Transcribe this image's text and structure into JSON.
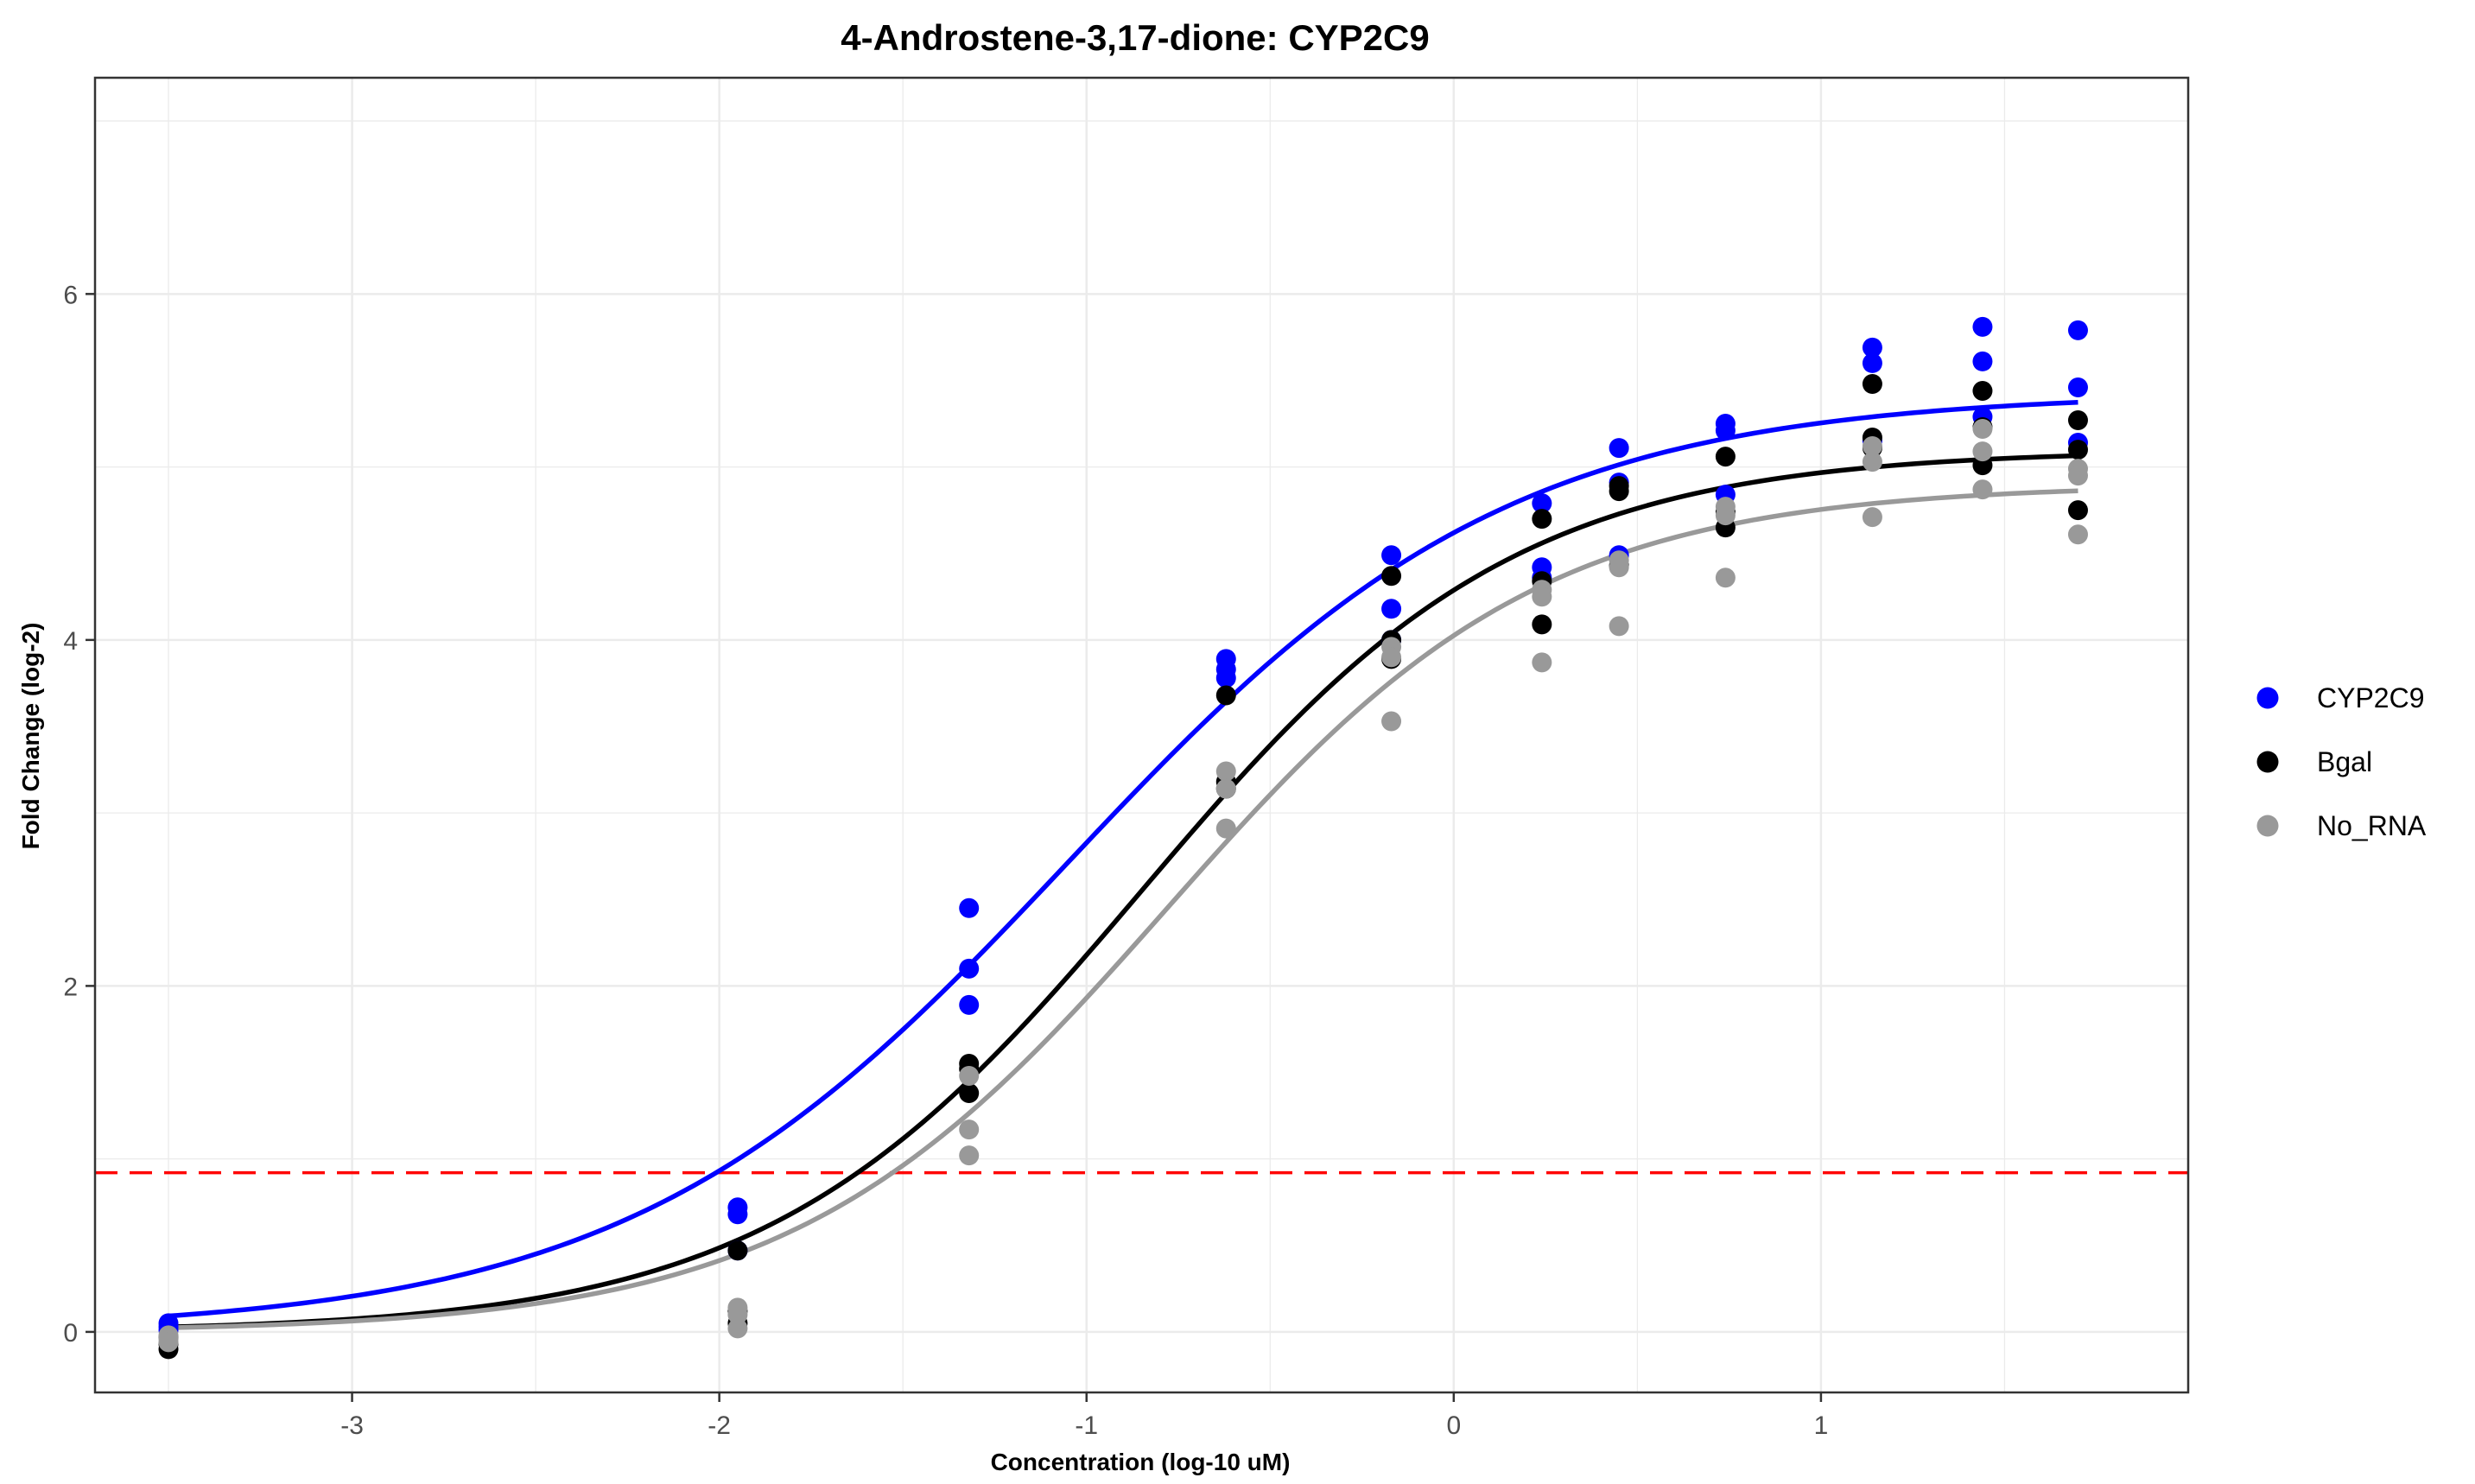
{
  "chart_data": {
    "type": "scatter",
    "title": "4-Androstene-3,17-dione: CYP2C9",
    "xlabel": "Concentration (log-10 uM)",
    "ylabel": "Fold Change (log-2)",
    "xlim": [
      -3.7,
      2.0
    ],
    "ylim": [
      -0.35,
      7.25
    ],
    "x_ticks": [
      -3,
      -2,
      -1,
      0,
      1
    ],
    "y_ticks": [
      0,
      2,
      4,
      6
    ],
    "grid": true,
    "legend_position": "right",
    "threshold": {
      "y": 0.92,
      "color": "#ff0000",
      "style": "dashed"
    },
    "series": [
      {
        "name": "CYP2C9",
        "color": "#0000ff",
        "points": [
          [
            -3.5,
            0.05
          ],
          [
            -3.5,
            0.03
          ],
          [
            -3.5,
            0.01
          ],
          [
            -1.95,
            0.72
          ],
          [
            -1.95,
            0.68
          ],
          [
            -1.95,
            0.47
          ],
          [
            -1.32,
            2.45
          ],
          [
            -1.32,
            2.1
          ],
          [
            -1.32,
            1.89
          ],
          [
            -0.62,
            3.89
          ],
          [
            -0.62,
            3.83
          ],
          [
            -0.62,
            3.78
          ],
          [
            -0.17,
            4.49
          ],
          [
            -0.17,
            4.18
          ],
          [
            -0.17,
            4.0
          ],
          [
            0.24,
            4.79
          ],
          [
            0.24,
            4.42
          ],
          [
            0.24,
            4.36
          ],
          [
            0.45,
            5.11
          ],
          [
            0.45,
            4.91
          ],
          [
            0.45,
            4.49
          ],
          [
            0.74,
            5.25
          ],
          [
            0.74,
            5.21
          ],
          [
            0.74,
            4.84
          ],
          [
            1.14,
            5.69
          ],
          [
            1.14,
            5.6
          ],
          [
            1.14,
            5.15
          ],
          [
            1.44,
            5.81
          ],
          [
            1.44,
            5.61
          ],
          [
            1.44,
            5.29
          ],
          [
            1.7,
            5.79
          ],
          [
            1.7,
            5.46
          ],
          [
            1.7,
            5.14
          ]
        ],
        "curve": {
          "bottom": 0.0,
          "top": 5.43,
          "ec50": -1.05,
          "hill": 0.72
        }
      },
      {
        "name": "Bgal",
        "color": "#000000",
        "points": [
          [
            -3.5,
            -0.03
          ],
          [
            -3.5,
            -0.07
          ],
          [
            -3.5,
            -0.1
          ],
          [
            -1.95,
            0.47
          ],
          [
            -1.95,
            0.12
          ],
          [
            -1.95,
            0.05
          ],
          [
            -1.32,
            1.55
          ],
          [
            -1.32,
            1.52
          ],
          [
            -1.32,
            1.38
          ],
          [
            -0.62,
            3.68
          ],
          [
            -0.62,
            3.18
          ],
          [
            -0.62,
            3.14
          ],
          [
            -0.17,
            4.37
          ],
          [
            -0.17,
            4.0
          ],
          [
            -0.17,
            3.89
          ],
          [
            0.24,
            4.7
          ],
          [
            0.24,
            4.34
          ],
          [
            0.24,
            4.09
          ],
          [
            0.45,
            4.89
          ],
          [
            0.45,
            4.86
          ],
          [
            0.45,
            4.43
          ],
          [
            0.74,
            5.06
          ],
          [
            0.74,
            4.74
          ],
          [
            0.74,
            4.65
          ],
          [
            1.14,
            5.48
          ],
          [
            1.14,
            5.17
          ],
          [
            1.14,
            5.11
          ],
          [
            1.44,
            5.44
          ],
          [
            1.44,
            5.23
          ],
          [
            1.44,
            5.01
          ],
          [
            1.7,
            5.27
          ],
          [
            1.7,
            5.1
          ],
          [
            1.7,
            4.75
          ]
        ],
        "curve": {
          "bottom": 0.0,
          "top": 5.1,
          "ec50": -0.85,
          "hill": 0.85
        }
      },
      {
        "name": "No_RNA",
        "color": "#999999",
        "points": [
          [
            -3.5,
            -0.02
          ],
          [
            -3.5,
            -0.04
          ],
          [
            -3.5,
            -0.06
          ],
          [
            -1.95,
            0.14
          ],
          [
            -1.95,
            0.1
          ],
          [
            -1.95,
            0.02
          ],
          [
            -1.32,
            1.48
          ],
          [
            -1.32,
            1.17
          ],
          [
            -1.32,
            1.02
          ],
          [
            -0.62,
            3.24
          ],
          [
            -0.62,
            3.14
          ],
          [
            -0.62,
            2.91
          ],
          [
            -0.17,
            3.96
          ],
          [
            -0.17,
            3.9
          ],
          [
            -0.17,
            3.53
          ],
          [
            0.24,
            4.29
          ],
          [
            0.24,
            4.25
          ],
          [
            0.24,
            3.87
          ],
          [
            0.45,
            4.46
          ],
          [
            0.45,
            4.42
          ],
          [
            0.45,
            4.08
          ],
          [
            0.74,
            4.77
          ],
          [
            0.74,
            4.72
          ],
          [
            0.74,
            4.36
          ],
          [
            1.14,
            5.12
          ],
          [
            1.14,
            5.03
          ],
          [
            1.14,
            4.71
          ],
          [
            1.44,
            5.22
          ],
          [
            1.44,
            5.09
          ],
          [
            1.44,
            4.87
          ],
          [
            1.7,
            4.99
          ],
          [
            1.7,
            4.95
          ],
          [
            1.7,
            4.61
          ]
        ],
        "curve": {
          "bottom": 0.0,
          "top": 4.9,
          "ec50": -0.78,
          "hill": 0.85
        }
      }
    ]
  }
}
